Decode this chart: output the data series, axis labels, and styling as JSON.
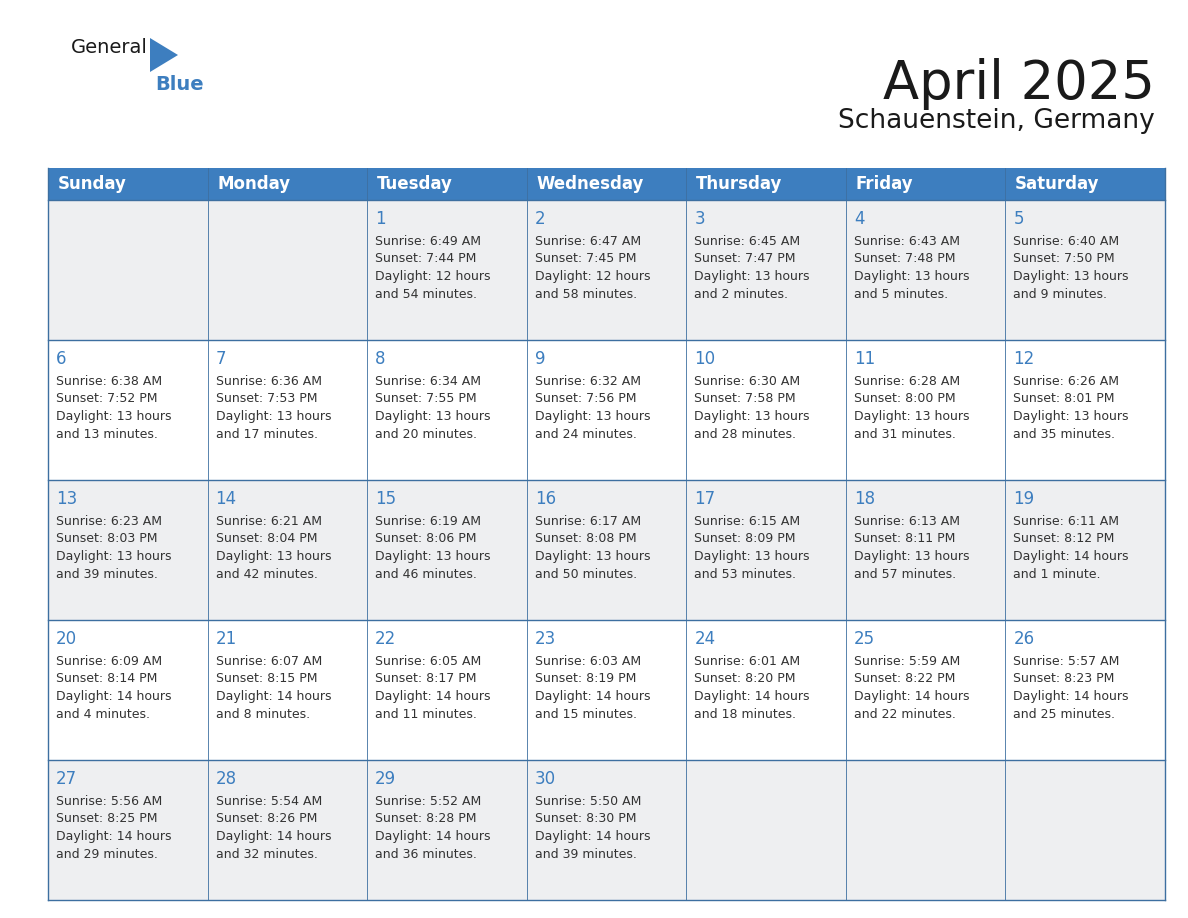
{
  "title": "April 2025",
  "subtitle": "Schauenstein, Germany",
  "header_bg_color": "#3d7ebf",
  "header_text_color": "#ffffff",
  "row_bg_odd": "#eeeff1",
  "row_bg_even": "#ffffff",
  "border_color": "#3d6fa0",
  "day_text_color": "#3d7ebf",
  "content_text_color": "#333333",
  "days_of_week": [
    "Sunday",
    "Monday",
    "Tuesday",
    "Wednesday",
    "Thursday",
    "Friday",
    "Saturday"
  ],
  "weeks": [
    [
      {
        "day": "",
        "text": ""
      },
      {
        "day": "",
        "text": ""
      },
      {
        "day": "1",
        "text": "Sunrise: 6:49 AM\nSunset: 7:44 PM\nDaylight: 12 hours\nand 54 minutes."
      },
      {
        "day": "2",
        "text": "Sunrise: 6:47 AM\nSunset: 7:45 PM\nDaylight: 12 hours\nand 58 minutes."
      },
      {
        "day": "3",
        "text": "Sunrise: 6:45 AM\nSunset: 7:47 PM\nDaylight: 13 hours\nand 2 minutes."
      },
      {
        "day": "4",
        "text": "Sunrise: 6:43 AM\nSunset: 7:48 PM\nDaylight: 13 hours\nand 5 minutes."
      },
      {
        "day": "5",
        "text": "Sunrise: 6:40 AM\nSunset: 7:50 PM\nDaylight: 13 hours\nand 9 minutes."
      }
    ],
    [
      {
        "day": "6",
        "text": "Sunrise: 6:38 AM\nSunset: 7:52 PM\nDaylight: 13 hours\nand 13 minutes."
      },
      {
        "day": "7",
        "text": "Sunrise: 6:36 AM\nSunset: 7:53 PM\nDaylight: 13 hours\nand 17 minutes."
      },
      {
        "day": "8",
        "text": "Sunrise: 6:34 AM\nSunset: 7:55 PM\nDaylight: 13 hours\nand 20 minutes."
      },
      {
        "day": "9",
        "text": "Sunrise: 6:32 AM\nSunset: 7:56 PM\nDaylight: 13 hours\nand 24 minutes."
      },
      {
        "day": "10",
        "text": "Sunrise: 6:30 AM\nSunset: 7:58 PM\nDaylight: 13 hours\nand 28 minutes."
      },
      {
        "day": "11",
        "text": "Sunrise: 6:28 AM\nSunset: 8:00 PM\nDaylight: 13 hours\nand 31 minutes."
      },
      {
        "day": "12",
        "text": "Sunrise: 6:26 AM\nSunset: 8:01 PM\nDaylight: 13 hours\nand 35 minutes."
      }
    ],
    [
      {
        "day": "13",
        "text": "Sunrise: 6:23 AM\nSunset: 8:03 PM\nDaylight: 13 hours\nand 39 minutes."
      },
      {
        "day": "14",
        "text": "Sunrise: 6:21 AM\nSunset: 8:04 PM\nDaylight: 13 hours\nand 42 minutes."
      },
      {
        "day": "15",
        "text": "Sunrise: 6:19 AM\nSunset: 8:06 PM\nDaylight: 13 hours\nand 46 minutes."
      },
      {
        "day": "16",
        "text": "Sunrise: 6:17 AM\nSunset: 8:08 PM\nDaylight: 13 hours\nand 50 minutes."
      },
      {
        "day": "17",
        "text": "Sunrise: 6:15 AM\nSunset: 8:09 PM\nDaylight: 13 hours\nand 53 minutes."
      },
      {
        "day": "18",
        "text": "Sunrise: 6:13 AM\nSunset: 8:11 PM\nDaylight: 13 hours\nand 57 minutes."
      },
      {
        "day": "19",
        "text": "Sunrise: 6:11 AM\nSunset: 8:12 PM\nDaylight: 14 hours\nand 1 minute."
      }
    ],
    [
      {
        "day": "20",
        "text": "Sunrise: 6:09 AM\nSunset: 8:14 PM\nDaylight: 14 hours\nand 4 minutes."
      },
      {
        "day": "21",
        "text": "Sunrise: 6:07 AM\nSunset: 8:15 PM\nDaylight: 14 hours\nand 8 minutes."
      },
      {
        "day": "22",
        "text": "Sunrise: 6:05 AM\nSunset: 8:17 PM\nDaylight: 14 hours\nand 11 minutes."
      },
      {
        "day": "23",
        "text": "Sunrise: 6:03 AM\nSunset: 8:19 PM\nDaylight: 14 hours\nand 15 minutes."
      },
      {
        "day": "24",
        "text": "Sunrise: 6:01 AM\nSunset: 8:20 PM\nDaylight: 14 hours\nand 18 minutes."
      },
      {
        "day": "25",
        "text": "Sunrise: 5:59 AM\nSunset: 8:22 PM\nDaylight: 14 hours\nand 22 minutes."
      },
      {
        "day": "26",
        "text": "Sunrise: 5:57 AM\nSunset: 8:23 PM\nDaylight: 14 hours\nand 25 minutes."
      }
    ],
    [
      {
        "day": "27",
        "text": "Sunrise: 5:56 AM\nSunset: 8:25 PM\nDaylight: 14 hours\nand 29 minutes."
      },
      {
        "day": "28",
        "text": "Sunrise: 5:54 AM\nSunset: 8:26 PM\nDaylight: 14 hours\nand 32 minutes."
      },
      {
        "day": "29",
        "text": "Sunrise: 5:52 AM\nSunset: 8:28 PM\nDaylight: 14 hours\nand 36 minutes."
      },
      {
        "day": "30",
        "text": "Sunrise: 5:50 AM\nSunset: 8:30 PM\nDaylight: 14 hours\nand 39 minutes."
      },
      {
        "day": "",
        "text": ""
      },
      {
        "day": "",
        "text": ""
      },
      {
        "day": "",
        "text": ""
      }
    ]
  ],
  "logo_text_general": "General",
  "logo_text_blue": "Blue",
  "logo_triangle_color": "#3d7ebf",
  "title_fontsize": 38,
  "subtitle_fontsize": 19,
  "header_fontsize": 12,
  "day_num_fontsize": 12,
  "content_fontsize": 9
}
